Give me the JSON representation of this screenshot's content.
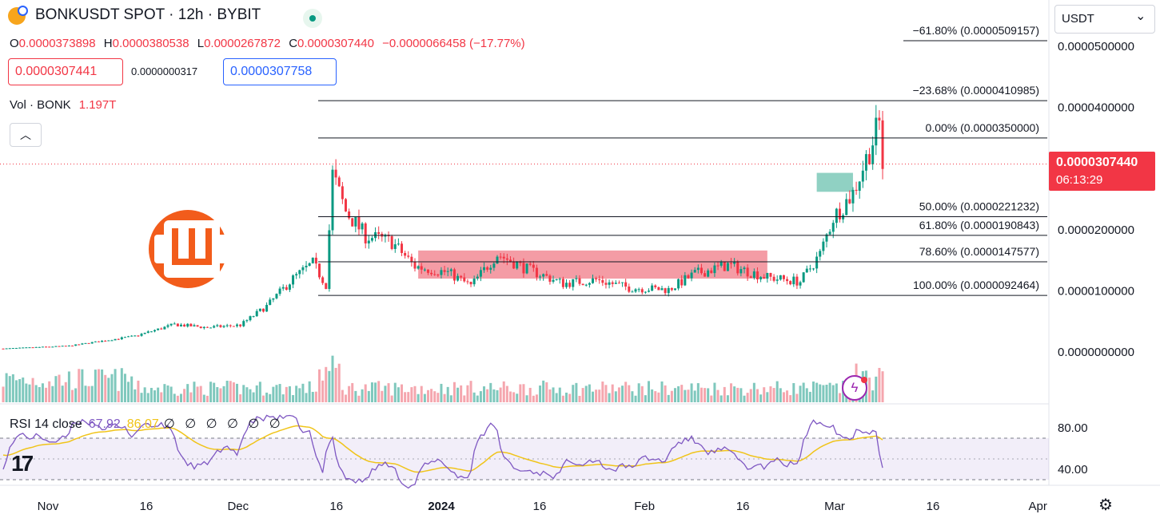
{
  "header": {
    "symbol_title": "BONKUSDT SPOT · 12h · BYBIT",
    "ohlc": [
      {
        "key": "O",
        "value": "0.0000373898"
      },
      {
        "key": "H",
        "value": "0.0000380538"
      },
      {
        "key": "L",
        "value": "0.0000267872"
      },
      {
        "key": "C",
        "value": "0.0000307440"
      }
    ],
    "change": "−0.0000066458 (−17.77%)",
    "sell_price": "0.0000307441",
    "spread": "0.0000000317",
    "buy_price": "0.0000307758",
    "volume_label": "Vol · BONK",
    "volume_value": "1.197T",
    "collapse_icon": "chevron-up-icon",
    "live_icon": "live-status-dot-icon"
  },
  "currency_select": {
    "value": "USDT",
    "icon": "chevron-down-icon"
  },
  "price_tag": {
    "price": "0.0000307440",
    "countdown": "06:13:29"
  },
  "rsi_legend": {
    "label": "RSI 14 close",
    "rsi_value": "67.92",
    "ma_value": "86.07",
    "empty_values": "∅ ∅ ∅ ∅ ∅ ∅"
  },
  "colors": {
    "up": "#089981",
    "down": "#f23645",
    "up_volume": "#7fc8bd",
    "down_volume": "#f5a6ae",
    "rsi_line": "#7e57c2",
    "rsi_ma": "#f0c419",
    "rsi_band": "#7e57c2",
    "zone_red": "#f28b95",
    "zone_green": "#7cc9b9",
    "fib_line": "#131722"
  },
  "icons": {
    "settings": "gear-icon",
    "brand": "bonk-brand-logo",
    "tradingview": "tradingview-logo",
    "flash": "lightning-icon"
  },
  "chart_data": {
    "type": "candlestick",
    "price_axis": {
      "ticks": [
        {
          "value": 5e-05,
          "label": "0.0000500000"
        },
        {
          "value": 4e-05,
          "label": "0.0000400000"
        },
        {
          "value": 2e-05,
          "label": "0.0000200000"
        },
        {
          "value": 1e-05,
          "label": "0.0000100000"
        },
        {
          "value": 0.0,
          "label": "0.0000000000"
        }
      ]
    },
    "time_axis": {
      "labels": [
        {
          "text": "Nov",
          "index": 0
        },
        {
          "text": "16",
          "index": 30
        },
        {
          "text": "Dec",
          "index": 58
        },
        {
          "text": "16",
          "index": 88
        },
        {
          "text": "2024",
          "index": 120
        },
        {
          "text": "16",
          "index": 150
        },
        {
          "text": "Feb",
          "index": 182
        },
        {
          "text": "16",
          "index": 212
        },
        {
          "text": "Mar",
          "index": 240
        },
        {
          "text": "16",
          "index": 270
        },
        {
          "text": "Apr",
          "index": 302
        }
      ]
    },
    "fibonacci": [
      {
        "label": "−61.80% (0.0000509157)",
        "price": 5.09157e-05
      },
      {
        "label": "−23.68% (0.0000410985)",
        "price": 4.10985e-05
      },
      {
        "label": "0.00% (0.0000350000)",
        "price": 3.5e-05
      },
      {
        "label": "50.00% (0.0000221232)",
        "price": 2.21232e-05
      },
      {
        "label": "61.80% (0.0000190843)",
        "price": 1.90843e-05
      },
      {
        "label": "78.60% (0.0000147577)",
        "price": 1.47577e-05
      },
      {
        "label": "100.00% (0.0000092464)",
        "price": 9.2464e-06
      }
    ],
    "last_price": 3.0744e-05,
    "rsi_axis": [
      {
        "value": 80,
        "label": "80.00"
      },
      {
        "value": 40,
        "label": "40.00"
      }
    ],
    "rsi_band": [
      30,
      70
    ],
    "zones": [
      {
        "kind": "supply",
        "start_index": 126,
        "end_index": 232,
        "top": 1.66e-05,
        "bottom": 1.2e-05
      },
      {
        "kind": "target",
        "start_index": 247,
        "end_index": 258,
        "top": 2.93e-05,
        "bottom": 2.62e-05
      }
    ],
    "candle_count": 250,
    "volume_series_note": ""
  }
}
